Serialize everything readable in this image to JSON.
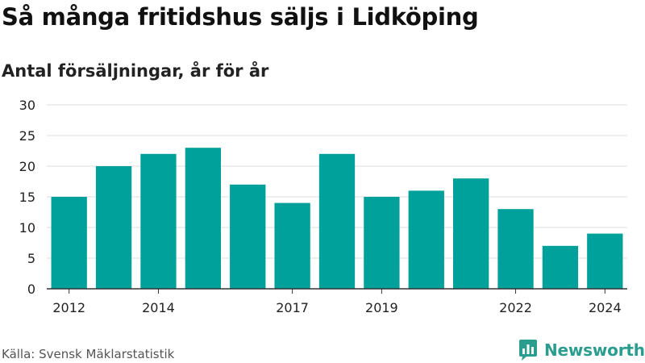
{
  "title": "Så många fritidshus säljs i Lidköping",
  "subtitle": "Antal försäljningar, år för år",
  "source": "Källa: Svensk Mäklarstatistik",
  "brand": {
    "name": "Newsworthy",
    "icon": "bar-chart-logo-icon",
    "color": "#2a9d8f"
  },
  "chart_data": {
    "type": "bar",
    "categories": [
      "2012",
      "2013",
      "2014",
      "2015",
      "2016",
      "2017",
      "2018",
      "2019",
      "2020",
      "2021",
      "2022",
      "2023",
      "2024"
    ],
    "values": [
      15,
      20,
      22,
      23,
      17,
      14,
      22,
      15,
      16,
      18,
      13,
      7,
      9
    ],
    "x_tick_labels": [
      "2012",
      "2014",
      "2017",
      "2019",
      "2022",
      "2024"
    ],
    "y_ticks": [
      0,
      5,
      10,
      15,
      20,
      25,
      30
    ],
    "ylim": [
      0,
      30
    ],
    "bar_color": "#00a19a",
    "grid": true
  }
}
